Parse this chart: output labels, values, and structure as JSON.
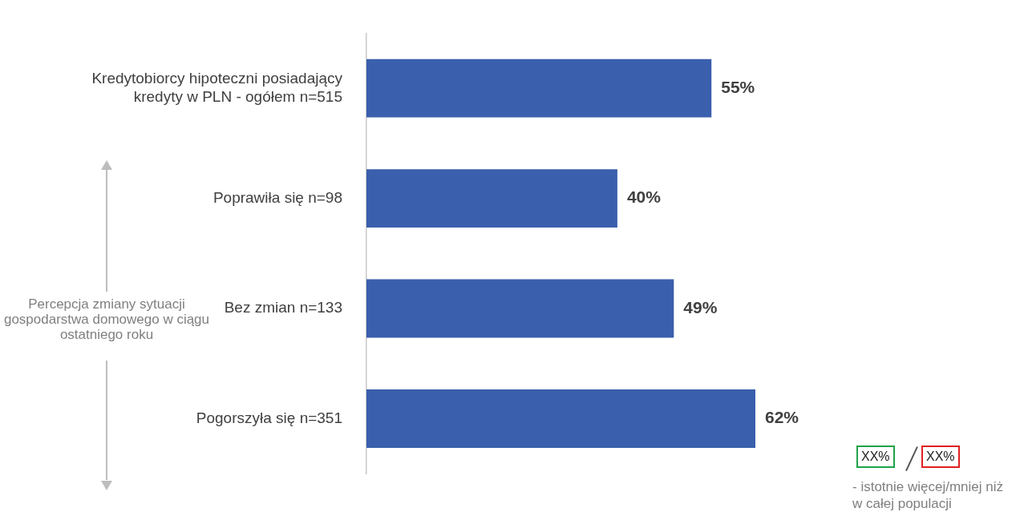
{
  "chart_data": {
    "type": "bar",
    "orientation": "horizontal",
    "categories": [
      "Kredytobiorcy hipoteczni posiadający kredyty w PLN - ogółem n=515",
      "Poprawiła się n=98",
      "Bez zmian n=133",
      "Pogorszyła się n=351"
    ],
    "values": [
      55,
      40,
      49,
      62
    ],
    "color": "#3a5fac",
    "value_labels": [
      "55%",
      "40%",
      "49%",
      "62%"
    ],
    "tick_labels": "y",
    "legend": false,
    "annotations": [
      "Percepcja zmiany sytuacji gospodarstwa domowego w ciągu ostatniego roku",
      "XX%",
      "XX%",
      "- istotnie więcej/mniej niż w całej populacji"
    ]
  }
}
